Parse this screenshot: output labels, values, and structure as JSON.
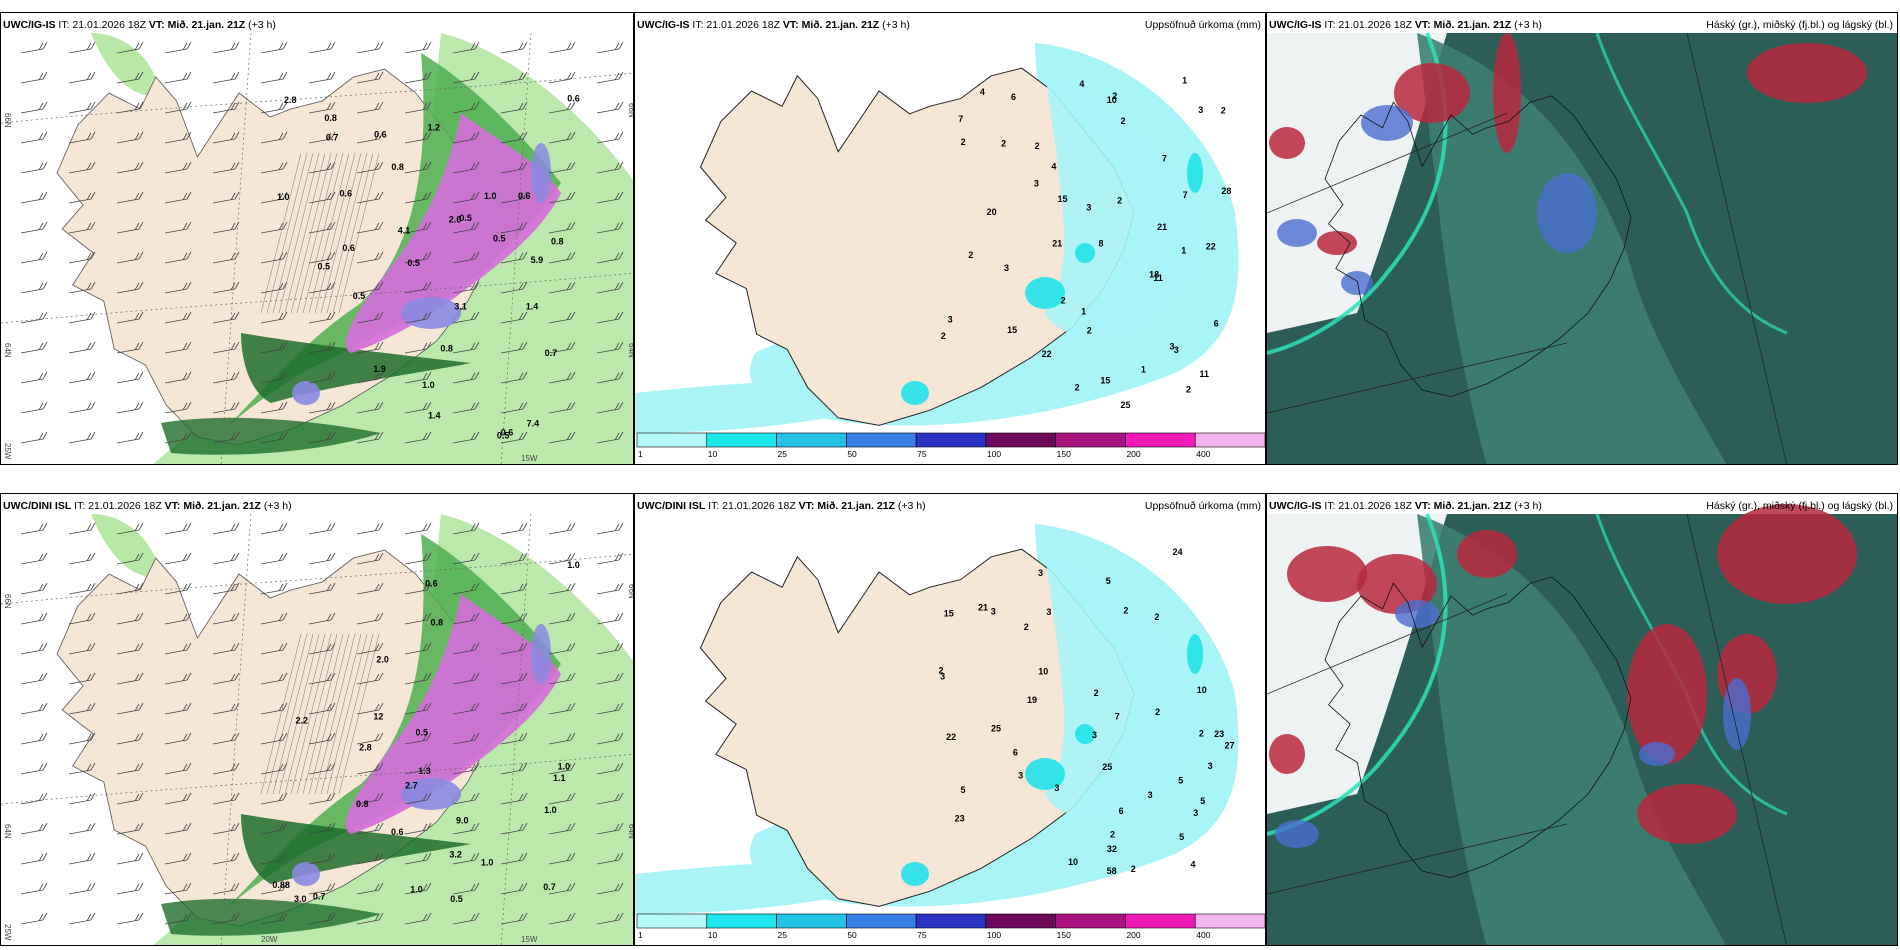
{
  "palette": {
    "land": "#f5e6d6",
    "green_light": "#b7e8a6",
    "green_mid": "#4fae4f",
    "green_dark": "#1f6e2a",
    "magenta": "#d36fd8",
    "violet": "#8a8ae0",
    "cyan_light": "#a8f4f7",
    "cyan": "#22e2ea",
    "teal_dark": "#2c5e57",
    "teal_mid": "#3e7f73",
    "blue_cloud": "#4a6ed0",
    "red_cloud": "#b9283d"
  },
  "rows": [
    {
      "precip": {
        "title_model": "UWC/IG-IS",
        "title_it": "IT: 21.01.2026 18Z",
        "title_vt": "VT: Mið. 21.jan. 21Z",
        "title_lead": "(+3 h)"
      },
      "accum": {
        "title_model": "UWC/IG-IS",
        "title_it": "IT: 21.01.2026 18Z",
        "title_vt": "VT: Mið. 21.jan. 21Z",
        "title_lead": "(+3 h)",
        "right_title": "Uppsöfnuð úrkoma (mm)",
        "numbers": [
          "3",
          "11",
          "1",
          "2",
          "3",
          "2",
          "10",
          "2",
          "4",
          "1",
          "3",
          "15",
          "3",
          "28",
          "1",
          "2",
          "1",
          "3",
          "2",
          "22",
          "2",
          "21",
          "4",
          "11",
          "20",
          "2",
          "8",
          "22",
          "21",
          "15",
          "2",
          "25",
          "6",
          "15",
          "6",
          "7",
          "7",
          "2",
          "7",
          "4",
          "3",
          "18",
          "2",
          "2",
          "2",
          "3",
          "2"
        ]
      },
      "cloud": {
        "title_model": "UWC/IG-IS",
        "title_it": "IT: 21.01.2026 18Z",
        "title_vt": "VT: Mið. 21.jan. 21Z",
        "title_lead": "(+3 h)",
        "right_title": "Háský (gr.), miðský (fj.bl.) og lágský (bl.)"
      }
    },
    {
      "precip": {
        "title_model": "UWC/DINI ISL",
        "title_it": "IT: 21.01.2026 18Z",
        "title_vt": "VT: Mið. 21.jan. 21Z",
        "title_lead": "(+3 h)"
      },
      "accum": {
        "title_model": "UWC/DINI ISL",
        "title_it": "IT: 21.01.2026 18Z",
        "title_vt": "VT: Mið. 21.jan. 21Z",
        "title_lead": "(+3 h)",
        "right_title": "Uppsöfnuð úrkoma (mm)",
        "numbers": [
          "5",
          "10",
          "5",
          "10",
          "6",
          "5",
          "22",
          "3",
          "4",
          "25",
          "2",
          "2",
          "2",
          "23",
          "2",
          "3",
          "25",
          "3",
          "6",
          "7",
          "23",
          "5",
          "15",
          "24",
          "10",
          "19",
          "21",
          "27",
          "32",
          "3",
          "2",
          "2",
          "58",
          "2",
          "3",
          "5",
          "3",
          "3",
          "3",
          "3",
          "2",
          "3",
          "2"
        ]
      },
      "cloud": {
        "title_model": "UWC/IG-IS",
        "title_it": "IT: 21.01.2026 18Z",
        "title_vt": "VT: Mið. 21.jan. 21Z",
        "title_lead": "(+3 h)",
        "right_title": "Háský (gr.), miðský (fj.bl.) og lágský (bl.)"
      }
    }
  ],
  "precip_numbers_top": [
    "0.7",
    "0.5",
    "0.8",
    "0.5",
    "0.5",
    "0.6",
    "0.5",
    "1.0",
    "1.4",
    "1.2",
    "1.0",
    "2.6",
    "3.1",
    "0.8",
    "1.4",
    "1.9",
    "4.1",
    "0.6",
    "0.6",
    "1.0",
    "5.9",
    "7.4",
    "2.8",
    "0.5",
    "0.8",
    "0.6",
    "0.6",
    "0.5",
    "0.7",
    "0.8",
    "0.6"
  ],
  "precip_numbers_bottom": [
    "0.7",
    "0.5",
    "2.0",
    "1.3",
    "3.0",
    "1.0",
    "2.8",
    "12",
    "9.0",
    "3.2",
    "0.6",
    "0.8",
    "1.1",
    "1.0",
    "0.7",
    "1.0",
    "2.2",
    "1.0",
    "0.8",
    "0.6",
    "0.5",
    "2.7",
    "1.0",
    "0.88"
  ],
  "coord_labels_top": [
    "66N",
    "64N",
    "25W",
    "15W",
    "66N",
    "64N"
  ],
  "coord_labels_bottom": [
    "66N",
    "64N",
    "25W",
    "20W",
    "15W",
    "66N",
    "64N"
  ],
  "colorbar": {
    "ticks": [
      "1",
      "10",
      "25",
      "50",
      "75",
      "100",
      "150",
      "200",
      "400"
    ],
    "colors": [
      "#b4f8fa",
      "#1ee6ee",
      "#22c3e6",
      "#3a7fe8",
      "#2c32c4",
      "#6e0a5c",
      "#a8117e",
      "#ee1ab6",
      "#f4b4f2"
    ]
  }
}
